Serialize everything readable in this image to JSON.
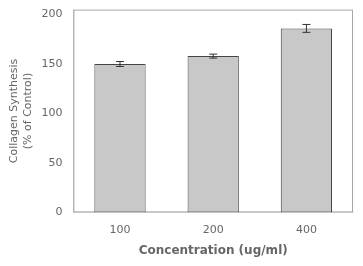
{
  "chart_data": {
    "type": "bar",
    "categories": [
      "100",
      "200",
      "400"
    ],
    "values": [
      150,
      158,
      186
    ],
    "errors": [
      2.5,
      2.0,
      4.0
    ],
    "color": "#c8c8c8",
    "xlabel": "Concentration (ug/ml)",
    "ylabel": "Collagen Synthesis\n(% of Control)",
    "ylim": [
      0,
      205
    ],
    "yticks": [
      0,
      50,
      100,
      150,
      200
    ],
    "grid": false
  }
}
